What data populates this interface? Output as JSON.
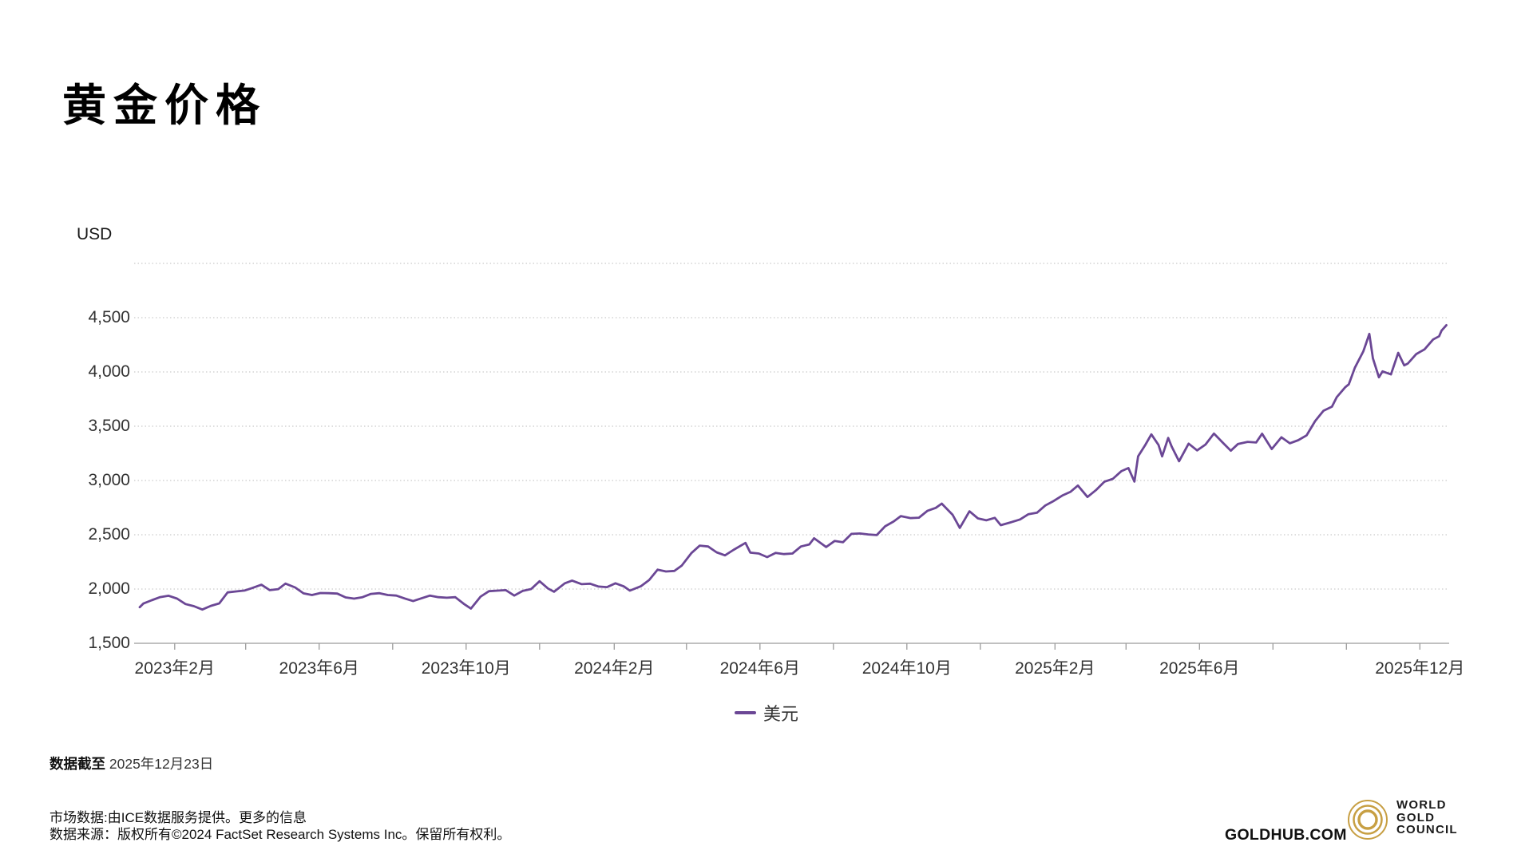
{
  "page": {
    "title": "黄金价格"
  },
  "colors": {
    "line_purple": "#6B4795",
    "gridline": "#CBCBCB",
    "axis": "#9B9B9B",
    "tick_text": "#333333",
    "wgc_gold": "#C79F43"
  },
  "chart_data": {
    "type": "line",
    "title": "黄金价格",
    "ylabel": "USD",
    "xlabel": "",
    "ylim": [
      1500,
      5000
    ],
    "grid": "dotted-horizontal",
    "legend_position": "bottom",
    "y_ticks": [
      {
        "value": 4500,
        "label": "4,500"
      },
      {
        "value": 4000,
        "label": "4,000"
      },
      {
        "value": 3500,
        "label": "3,500"
      },
      {
        "value": 3000,
        "label": "3,000"
      },
      {
        "value": 2500,
        "label": "2,500"
      },
      {
        "value": 2000,
        "label": "2,000"
      },
      {
        "value": 1500,
        "label": "1,500"
      }
    ],
    "grid_values": [
      5000,
      4500,
      4000,
      3500,
      3000,
      2500,
      2000
    ],
    "x_range": [
      "2023-01-01",
      "2025-12-24"
    ],
    "x_ticks": [
      {
        "date": "2023-02-01",
        "label": "2023年2月"
      },
      {
        "date": "2023-04-01",
        "label": ""
      },
      {
        "date": "2023-06-01",
        "label": "2023年6月"
      },
      {
        "date": "2023-08-01",
        "label": ""
      },
      {
        "date": "2023-10-01",
        "label": "2023年10月"
      },
      {
        "date": "2023-12-01",
        "label": ""
      },
      {
        "date": "2024-02-01",
        "label": "2024年2月"
      },
      {
        "date": "2024-04-01",
        "label": ""
      },
      {
        "date": "2024-06-01",
        "label": "2024年6月"
      },
      {
        "date": "2024-08-01",
        "label": ""
      },
      {
        "date": "2024-10-01",
        "label": "2024年10月"
      },
      {
        "date": "2024-12-01",
        "label": ""
      },
      {
        "date": "2025-02-01",
        "label": "2025年2月"
      },
      {
        "date": "2025-04-01",
        "label": ""
      },
      {
        "date": "2025-06-01",
        "label": "2025年6月"
      },
      {
        "date": "2025-08-01",
        "label": ""
      },
      {
        "date": "2025-10-01",
        "label": ""
      },
      {
        "date": "2025-12-01",
        "label": "2025年12月"
      }
    ],
    "series": [
      {
        "name": "美元",
        "color": "#6B4795",
        "points": [
          [
            "2023-01-03",
            1833
          ],
          [
            "2023-01-06",
            1866
          ],
          [
            "2023-01-13",
            1897
          ],
          [
            "2023-01-20",
            1926
          ],
          [
            "2023-01-27",
            1938
          ],
          [
            "2023-02-03",
            1912
          ],
          [
            "2023-02-10",
            1862
          ],
          [
            "2023-02-17",
            1842
          ],
          [
            "2023-02-24",
            1811
          ],
          [
            "2023-03-03",
            1845
          ],
          [
            "2023-03-10",
            1868
          ],
          [
            "2023-03-17",
            1969
          ],
          [
            "2023-03-24",
            1978
          ],
          [
            "2023-03-31",
            1986
          ],
          [
            "2023-04-06",
            2008
          ],
          [
            "2023-04-14",
            2040
          ],
          [
            "2023-04-21",
            1990
          ],
          [
            "2023-04-28",
            1999
          ],
          [
            "2023-05-04",
            2050
          ],
          [
            "2023-05-12",
            2015
          ],
          [
            "2023-05-19",
            1960
          ],
          [
            "2023-05-26",
            1945
          ],
          [
            "2023-06-02",
            1963
          ],
          [
            "2023-06-09",
            1962
          ],
          [
            "2023-06-16",
            1958
          ],
          [
            "2023-06-23",
            1923
          ],
          [
            "2023-06-30",
            1912
          ],
          [
            "2023-07-07",
            1925
          ],
          [
            "2023-07-14",
            1955
          ],
          [
            "2023-07-21",
            1962
          ],
          [
            "2023-07-28",
            1945
          ],
          [
            "2023-08-04",
            1940
          ],
          [
            "2023-08-11",
            1913
          ],
          [
            "2023-08-18",
            1889
          ],
          [
            "2023-08-25",
            1915
          ],
          [
            "2023-09-01",
            1940
          ],
          [
            "2023-09-08",
            1925
          ],
          [
            "2023-09-15",
            1920
          ],
          [
            "2023-09-22",
            1925
          ],
          [
            "2023-09-29",
            1865
          ],
          [
            "2023-10-05",
            1820
          ],
          [
            "2023-10-13",
            1930
          ],
          [
            "2023-10-20",
            1980
          ],
          [
            "2023-10-27",
            1985
          ],
          [
            "2023-11-03",
            1990
          ],
          [
            "2023-11-10",
            1940
          ],
          [
            "2023-11-17",
            1982
          ],
          [
            "2023-11-24",
            2000
          ],
          [
            "2023-12-01",
            2072
          ],
          [
            "2023-12-08",
            2005
          ],
          [
            "2023-12-13",
            1975
          ],
          [
            "2023-12-22",
            2053
          ],
          [
            "2023-12-28",
            2078
          ],
          [
            "2024-01-05",
            2045
          ],
          [
            "2024-01-12",
            2049
          ],
          [
            "2024-01-19",
            2023
          ],
          [
            "2024-01-26",
            2018
          ],
          [
            "2024-02-02",
            2053
          ],
          [
            "2024-02-09",
            2024
          ],
          [
            "2024-02-14",
            1985
          ],
          [
            "2024-02-23",
            2025
          ],
          [
            "2024-03-01",
            2083
          ],
          [
            "2024-03-08",
            2179
          ],
          [
            "2024-03-15",
            2162
          ],
          [
            "2024-03-22",
            2167
          ],
          [
            "2024-03-28",
            2215
          ],
          [
            "2024-04-05",
            2330
          ],
          [
            "2024-04-12",
            2400
          ],
          [
            "2024-04-19",
            2392
          ],
          [
            "2024-04-26",
            2338
          ],
          [
            "2024-05-03",
            2310
          ],
          [
            "2024-05-10",
            2360
          ],
          [
            "2024-05-20",
            2425
          ],
          [
            "2024-05-24",
            2335
          ],
          [
            "2024-05-31",
            2327
          ],
          [
            "2024-06-07",
            2294
          ],
          [
            "2024-06-14",
            2333
          ],
          [
            "2024-06-21",
            2322
          ],
          [
            "2024-06-28",
            2327
          ],
          [
            "2024-07-05",
            2392
          ],
          [
            "2024-07-12",
            2411
          ],
          [
            "2024-07-16",
            2468
          ],
          [
            "2024-07-26",
            2387
          ],
          [
            "2024-08-02",
            2443
          ],
          [
            "2024-08-09",
            2431
          ],
          [
            "2024-08-16",
            2508
          ],
          [
            "2024-08-23",
            2512
          ],
          [
            "2024-08-30",
            2503
          ],
          [
            "2024-09-06",
            2497
          ],
          [
            "2024-09-13",
            2578
          ],
          [
            "2024-09-20",
            2622
          ],
          [
            "2024-09-26",
            2672
          ],
          [
            "2024-10-04",
            2654
          ],
          [
            "2024-10-11",
            2657
          ],
          [
            "2024-10-18",
            2720
          ],
          [
            "2024-10-25",
            2748
          ],
          [
            "2024-10-30",
            2787
          ],
          [
            "2024-11-08",
            2684
          ],
          [
            "2024-11-14",
            2563
          ],
          [
            "2024-11-22",
            2716
          ],
          [
            "2024-11-29",
            2651
          ],
          [
            "2024-12-06",
            2633
          ],
          [
            "2024-12-13",
            2656
          ],
          [
            "2024-12-18",
            2588
          ],
          [
            "2024-12-27",
            2617
          ],
          [
            "2025-01-03",
            2641
          ],
          [
            "2025-01-10",
            2690
          ],
          [
            "2025-01-17",
            2703
          ],
          [
            "2025-01-24",
            2770
          ],
          [
            "2025-01-31",
            2812
          ],
          [
            "2025-02-07",
            2861
          ],
          [
            "2025-02-14",
            2896
          ],
          [
            "2025-02-20",
            2954
          ],
          [
            "2025-02-28",
            2848
          ],
          [
            "2025-03-07",
            2911
          ],
          [
            "2025-03-14",
            2988
          ],
          [
            "2025-03-21",
            3015
          ],
          [
            "2025-03-28",
            3085
          ],
          [
            "2025-04-03",
            3115
          ],
          [
            "2025-04-08",
            2990
          ],
          [
            "2025-04-11",
            3222
          ],
          [
            "2025-04-17",
            3327
          ],
          [
            "2025-04-22",
            3425
          ],
          [
            "2025-04-28",
            3327
          ],
          [
            "2025-05-01",
            3222
          ],
          [
            "2025-05-06",
            3392
          ],
          [
            "2025-05-09",
            3310
          ],
          [
            "2025-05-15",
            3177
          ],
          [
            "2025-05-23",
            3340
          ],
          [
            "2025-05-30",
            3277
          ],
          [
            "2025-06-06",
            3331
          ],
          [
            "2025-06-13",
            3432
          ],
          [
            "2025-06-20",
            3352
          ],
          [
            "2025-06-27",
            3274
          ],
          [
            "2025-07-03",
            3337
          ],
          [
            "2025-07-11",
            3356
          ],
          [
            "2025-07-18",
            3350
          ],
          [
            "2025-07-23",
            3431
          ],
          [
            "2025-07-31",
            3290
          ],
          [
            "2025-08-08",
            3398
          ],
          [
            "2025-08-15",
            3343
          ],
          [
            "2025-08-22",
            3371
          ],
          [
            "2025-08-29",
            3416
          ],
          [
            "2025-09-05",
            3547
          ],
          [
            "2025-09-12",
            3643
          ],
          [
            "2025-09-19",
            3680
          ],
          [
            "2025-09-23",
            3768
          ],
          [
            "2025-09-30",
            3859
          ],
          [
            "2025-10-03",
            3886
          ],
          [
            "2025-10-08",
            4039
          ],
          [
            "2025-10-15",
            4188
          ],
          [
            "2025-10-17",
            4251
          ],
          [
            "2025-10-20",
            4351
          ],
          [
            "2025-10-23",
            4126
          ],
          [
            "2025-10-28",
            3951
          ],
          [
            "2025-10-31",
            4005
          ],
          [
            "2025-11-07",
            3977
          ],
          [
            "2025-11-13",
            4176
          ],
          [
            "2025-11-18",
            4060
          ],
          [
            "2025-11-21",
            4077
          ],
          [
            "2025-11-28",
            4165
          ],
          [
            "2025-12-05",
            4209
          ],
          [
            "2025-12-12",
            4299
          ],
          [
            "2025-12-17",
            4329
          ],
          [
            "2025-12-19",
            4381
          ],
          [
            "2025-12-23",
            4431
          ]
        ]
      }
    ]
  },
  "footer": {
    "note_label": "数据截至",
    "note_value": "2025年12月23日",
    "market_text": "市场数据:由ICE数据服务提供。",
    "market_link_text": "更多的信息",
    "source_text": "数据来源：版权所有©2024 FactSet Research Systems Inc。保留所有权利。"
  },
  "branding": {
    "goldhub_text": "GOLDHUB.COM",
    "wgc_line1": "WORLD",
    "wgc_line2": "GOLD",
    "wgc_line3": "COUNCIL"
  }
}
